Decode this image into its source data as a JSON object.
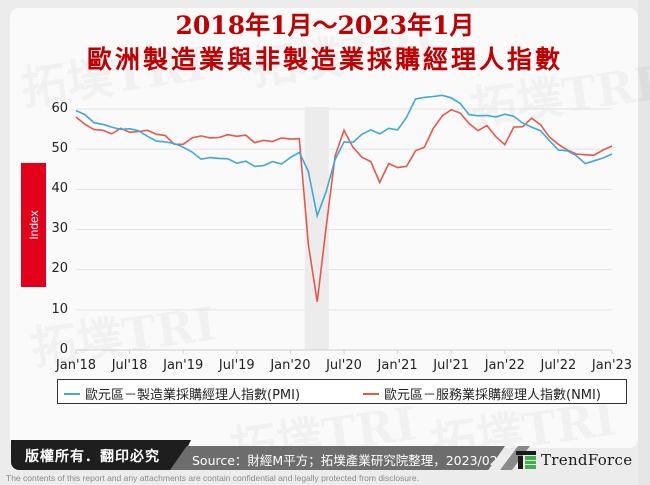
{
  "header": {
    "title_line1": "2018年1月～2023年1月",
    "title_line2": "歐洲製造業與非製造業採購經理人指數"
  },
  "colors": {
    "pmi": "#3fa9d9",
    "nmi": "#e8584a",
    "title": "#c00000",
    "index_label_bg": "#e3001b",
    "shade": "#ececec",
    "grid": "#e3e3e3"
  },
  "chart_data": {
    "type": "line",
    "title": "2018年1月～2023年1月 歐洲製造業與非製造業採購經理人指數",
    "xlabel": "",
    "ylabel": "Index",
    "ylim": [
      0,
      60
    ],
    "yticks": [
      0,
      10,
      20,
      30,
      40,
      50,
      60
    ],
    "grid": true,
    "legend_position": "bottom",
    "shaded_region": {
      "from": "Mar'20",
      "to": "May'20"
    },
    "x_tick_labels": [
      "Jan'18",
      "Jul'18",
      "Jan'19",
      "Jul'19",
      "Jan'20",
      "Jul'20",
      "Jan'21",
      "Jul'21",
      "Jan'22",
      "Jul'22",
      "Jan'23"
    ],
    "x": [
      "2018-01",
      "2018-02",
      "2018-03",
      "2018-04",
      "2018-05",
      "2018-06",
      "2018-07",
      "2018-08",
      "2018-09",
      "2018-10",
      "2018-11",
      "2018-12",
      "2019-01",
      "2019-02",
      "2019-03",
      "2019-04",
      "2019-05",
      "2019-06",
      "2019-07",
      "2019-08",
      "2019-09",
      "2019-10",
      "2019-11",
      "2019-12",
      "2020-01",
      "2020-02",
      "2020-03",
      "2020-04",
      "2020-05",
      "2020-06",
      "2020-07",
      "2020-08",
      "2020-09",
      "2020-10",
      "2020-11",
      "2020-12",
      "2021-01",
      "2021-02",
      "2021-03",
      "2021-04",
      "2021-05",
      "2021-06",
      "2021-07",
      "2021-08",
      "2021-09",
      "2021-10",
      "2021-11",
      "2021-12",
      "2022-01",
      "2022-02",
      "2022-03",
      "2022-04",
      "2022-05",
      "2022-06",
      "2022-07",
      "2022-08",
      "2022-09",
      "2022-10",
      "2022-11",
      "2022-12",
      "2023-01"
    ],
    "series": [
      {
        "name": "歐元區－製造業採購經理人指數(PMI)",
        "color": "#3fa9d9",
        "values": [
          59.6,
          58.6,
          56.6,
          56.2,
          55.5,
          54.9,
          55.1,
          54.6,
          53.2,
          52.0,
          51.8,
          51.4,
          50.5,
          49.3,
          47.5,
          47.9,
          47.7,
          47.6,
          46.5,
          47.0,
          45.7,
          45.9,
          46.9,
          46.3,
          47.9,
          49.2,
          44.5,
          33.4,
          39.4,
          47.4,
          51.8,
          51.7,
          53.7,
          54.8,
          53.8,
          55.2,
          54.8,
          57.9,
          62.5,
          62.9,
          63.1,
          63.4,
          62.8,
          61.4,
          58.6,
          58.3,
          58.4,
          58.0,
          58.7,
          58.2,
          56.5,
          55.5,
          54.6,
          52.1,
          49.8,
          49.6,
          48.4,
          46.4,
          47.1,
          47.8,
          48.8
        ]
      },
      {
        "name": "歐元區－服務業採購經理人指數(NMI)",
        "color": "#e8584a",
        "values": [
          58.0,
          56.2,
          54.9,
          54.7,
          53.8,
          55.2,
          54.2,
          54.4,
          54.7,
          53.7,
          53.4,
          51.2,
          51.2,
          52.8,
          53.3,
          52.8,
          52.9,
          53.6,
          53.2,
          53.5,
          51.6,
          52.2,
          51.9,
          52.8,
          52.5,
          52.6,
          26.4,
          12.0,
          30.5,
          48.3,
          54.7,
          50.5,
          48.0,
          46.9,
          41.7,
          46.4,
          45.4,
          45.7,
          49.6,
          50.5,
          55.2,
          58.3,
          59.8,
          59.0,
          56.4,
          54.6,
          55.9,
          53.1,
          51.1,
          55.5,
          55.6,
          57.7,
          56.1,
          53.0,
          51.2,
          49.8,
          48.8,
          48.6,
          48.5,
          49.8,
          50.8
        ]
      }
    ]
  },
  "axis": {
    "y_labels": [
      "60",
      "50",
      "40",
      "30",
      "20",
      "10",
      "0"
    ],
    "y_title": "Index",
    "x_labels": [
      "Jan'18",
      "Jul'18",
      "Jan'19",
      "Jul'19",
      "Jan'20",
      "Jul'20",
      "Jan'21",
      "Jul'21",
      "Jan'22",
      "Jul'22",
      "Jan'23"
    ]
  },
  "legend": {
    "pmi_label": "歐元區－製造業採購經理人指數(PMI)",
    "nmi_label": "歐元區－服務業採購經理人指數(NMI)"
  },
  "footer": {
    "copyright": "版權所有．翻印必究",
    "source": "Source：財經M平方；拓墣產業研究院整理，2023/02",
    "brand": "TrendForce",
    "disclaimer": "The contents of this report and any attachments are contain confidential and legally protected from disclosure."
  },
  "watermark": {
    "text": "拓墣TRI",
    "subtext": "TOPOLOGY RESEARCH INSTITUTE"
  }
}
